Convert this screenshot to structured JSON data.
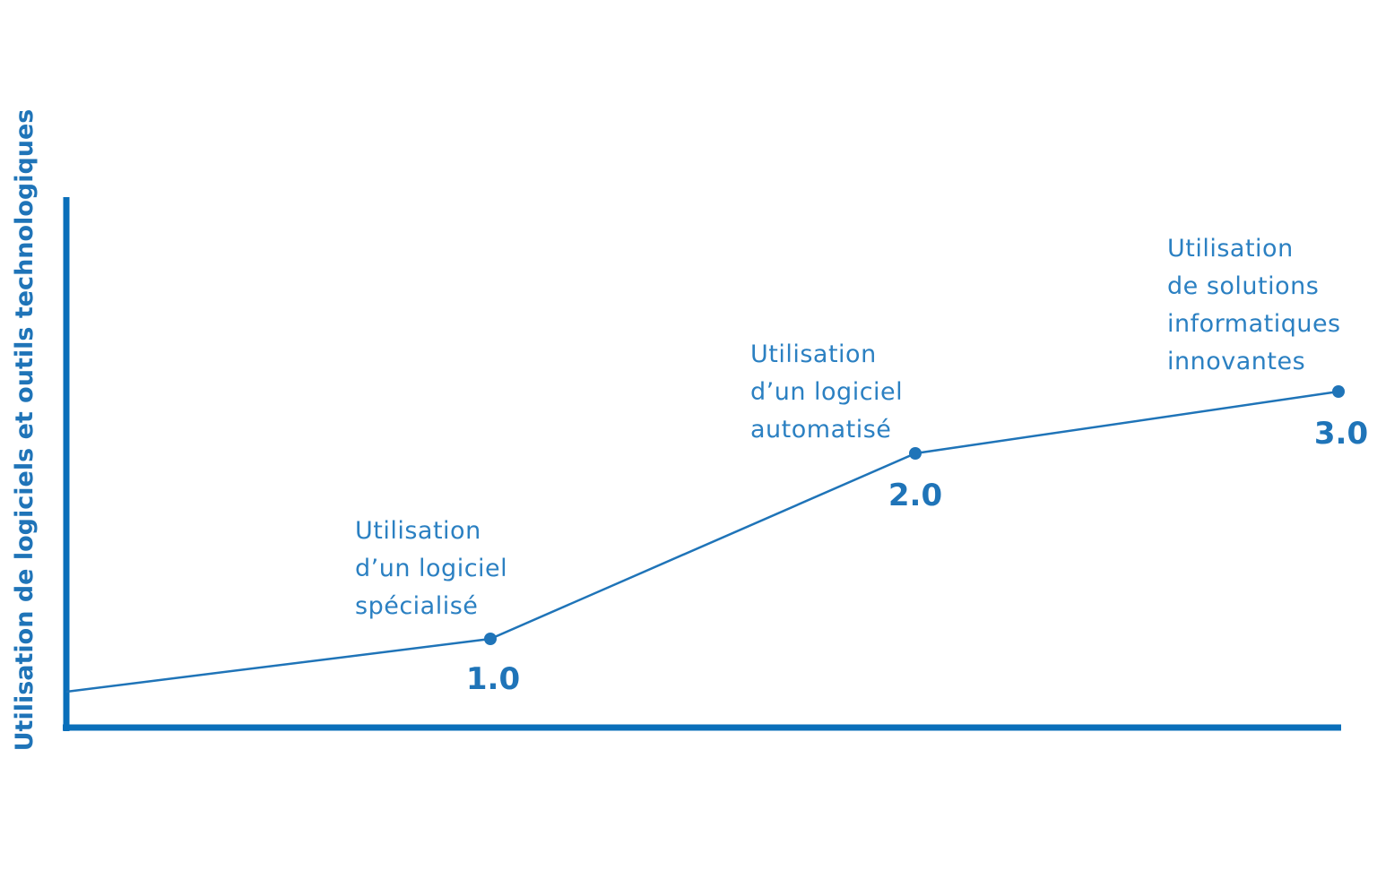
{
  "y_axis_label": "Utilisation de logiciels et outils technologiques",
  "stages": [
    {
      "version": "1.0",
      "description": [
        "Utilisation",
        "d’un logiciel",
        "spécialisé"
      ]
    },
    {
      "version": "2.0",
      "description": [
        "Utilisation",
        "d’un logiciel",
        "automatisé"
      ]
    },
    {
      "version": "3.0",
      "description": [
        "Utilisation",
        "de solutions",
        "informatiques",
        "innovantes"
      ]
    }
  ]
}
